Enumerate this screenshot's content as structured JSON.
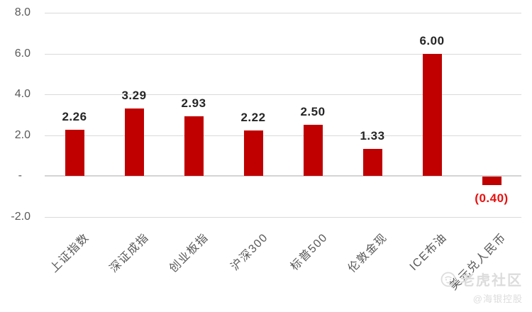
{
  "page": {
    "background": "#ffffff"
  },
  "chart_data": {
    "type": "bar",
    "title": "",
    "categories": [
      "上证指数",
      "深证成指",
      "创业板指",
      "沪深300",
      "标普500",
      "伦敦金现",
      "ICE布油",
      "美元兑人民币"
    ],
    "values": [
      2.26,
      3.29,
      2.93,
      2.22,
      2.5,
      1.33,
      6.0,
      -0.4
    ],
    "value_labels": [
      "2.26",
      "3.29",
      "2.93",
      "2.22",
      "2.50",
      "1.33",
      "6.00",
      "(0.40)"
    ],
    "yticks": [
      {
        "label": "8.0",
        "value": 8
      },
      {
        "label": "6.0",
        "value": 6
      },
      {
        "label": "4.0",
        "value": 4
      },
      {
        "label": "2.0",
        "value": 2
      },
      {
        "label": "-",
        "value": 0
      },
      {
        "label": "-2.0",
        "value": -2
      }
    ],
    "ylim": [
      -2,
      8.6
    ],
    "xlabel": "",
    "ylabel": "",
    "grid": true,
    "legend": "none",
    "colors": {
      "bar": "#c00000",
      "positive_value_label": "#262626",
      "negative_value_label": "#e8100f",
      "axis_text": "#595959",
      "gridline": "#d9d9d9",
      "zero_line": "#d4d4d4"
    }
  },
  "watermark": {
    "logo": "tiger-icon",
    "brand": "老虎社区",
    "handle": "@海银控股",
    "color": "#dcdcdc"
  }
}
